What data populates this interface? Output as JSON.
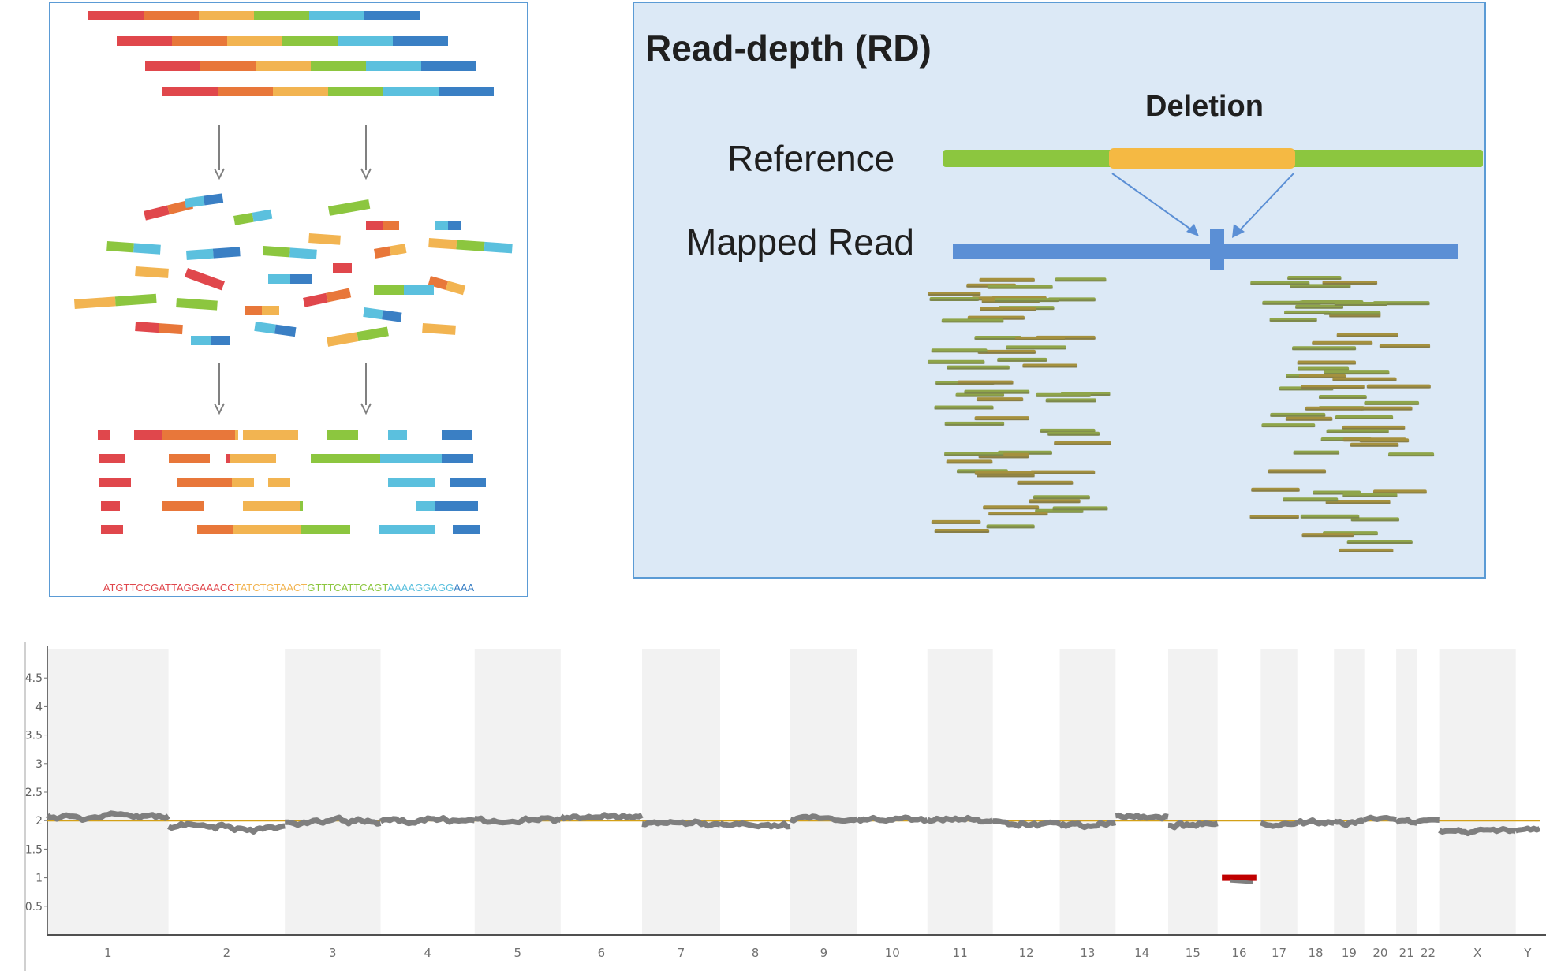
{
  "left_panel": {
    "sequence": [
      {
        "text": "ATGTTCCGATTAGGAAACC",
        "color": "#e0474c"
      },
      {
        "text": "TATCTGTAACT",
        "color": "#f2b451"
      },
      {
        "text": "GTTTCATTCAGT",
        "color": "#8cc63f"
      },
      {
        "text": "AAAAGGAGG",
        "color": "#5bc0de"
      },
      {
        "text": "AAA",
        "color": "#3a7fc4"
      }
    ]
  },
  "right_panel": {
    "title": "Read-depth (RD)",
    "deletion_label": "Deletion",
    "reference_label": "Reference",
    "mapped_read_label": "Mapped Read"
  },
  "colors": {
    "red": "#e0474c",
    "orange": "#e8773a",
    "yellow": "#f2b451",
    "green": "#8cc63f",
    "light_blue": "#5bc0de",
    "blue": "#3a7fc4",
    "reference_green": "#8cc63f",
    "deletion_yellow": "#f5b943",
    "mapped_blue": "#5b8fd5",
    "baseline": "#d4a017",
    "cnv_trace": "#7f7f7f",
    "cnv_deletion": "#c00000",
    "band_shade": "#f2f2f2"
  },
  "chart_data": {
    "type": "scatter",
    "title": "",
    "xlabel": "",
    "ylabel": "",
    "ylim": [
      0,
      5
    ],
    "yticks": [
      "0.5",
      "1",
      "1.5",
      "2",
      "2.5",
      "3",
      "3.5",
      "4",
      "4.5"
    ],
    "baseline": 2,
    "chromosomes": [
      "1",
      "2",
      "3",
      "4",
      "5",
      "6",
      "7",
      "8",
      "9",
      "10",
      "11",
      "12",
      "13",
      "14",
      "15",
      "16",
      "17",
      "18",
      "19",
      "20",
      "21",
      "22",
      "X",
      "Y"
    ],
    "segments": [
      {
        "chr": "1",
        "copy_number": 2.07
      },
      {
        "chr": "2",
        "copy_number": 1.88
      },
      {
        "chr": "3",
        "copy_number": 1.98
      },
      {
        "chr": "4",
        "copy_number": 2.0
      },
      {
        "chr": "5",
        "copy_number": 2.02
      },
      {
        "chr": "6",
        "copy_number": 2.05
      },
      {
        "chr": "7",
        "copy_number": 1.94
      },
      {
        "chr": "8",
        "copy_number": 1.92
      },
      {
        "chr": "9",
        "copy_number": 2.02
      },
      {
        "chr": "10",
        "copy_number": 2.0
      },
      {
        "chr": "11",
        "copy_number": 2.0
      },
      {
        "chr": "12",
        "copy_number": 1.97
      },
      {
        "chr": "13",
        "copy_number": 1.93
      },
      {
        "chr": "14",
        "copy_number": 2.08
      },
      {
        "chr": "15",
        "copy_number": 1.92
      },
      {
        "chr": "16",
        "copy_number": 1.0
      },
      {
        "chr": "17",
        "copy_number": 1.95
      },
      {
        "chr": "18",
        "copy_number": 1.97
      },
      {
        "chr": "19",
        "copy_number": 1.98
      },
      {
        "chr": "20",
        "copy_number": 2.02
      },
      {
        "chr": "21",
        "copy_number": 2.0
      },
      {
        "chr": "22",
        "copy_number": 2.0
      },
      {
        "chr": "X",
        "copy_number": 1.8
      },
      {
        "chr": "Y",
        "copy_number": 1.85
      }
    ]
  }
}
